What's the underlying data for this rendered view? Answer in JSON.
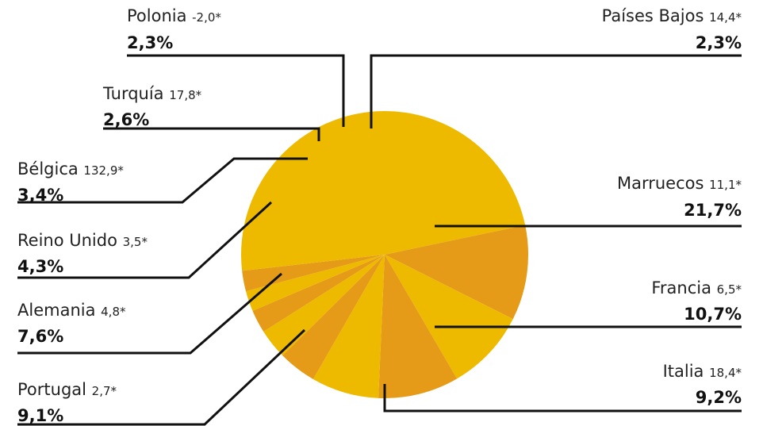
{
  "chart_data": {
    "type": "pie",
    "title": "",
    "start_angle_deg": 0,
    "colors": {
      "light": "#EDBA00",
      "dark": "#E59A18"
    },
    "slices": [
      {
        "name": "Marruecos",
        "growth": "11,1*",
        "pct_label": "21,7%",
        "value": 21.7,
        "tone": "light"
      },
      {
        "name": "Francia",
        "growth": "6,5*",
        "pct_label": "10,7%",
        "value": 10.7,
        "tone": "dark"
      },
      {
        "name": "Italia",
        "growth": "18,4*",
        "pct_label": "9,2%",
        "value": 9.2,
        "tone": "light"
      },
      {
        "name": "Portugal",
        "growth": "2,7*",
        "pct_label": "9,1%",
        "value": 9.1,
        "tone": "dark"
      },
      {
        "name": "Alemania",
        "growth": "4,8*",
        "pct_label": "7,6%",
        "value": 7.6,
        "tone": "light"
      },
      {
        "name": "Reino Unido",
        "growth": "3,5*",
        "pct_label": "4,3%",
        "value": 4.3,
        "tone": "dark"
      },
      {
        "name": "Bélgica",
        "growth": "132,9*",
        "pct_label": "3,4%",
        "value": 3.4,
        "tone": "light"
      },
      {
        "name": "Turquía",
        "growth": "17,8*",
        "pct_label": "2,6%",
        "value": 2.6,
        "tone": "dark"
      },
      {
        "name": "Polonia",
        "growth": "-2,0*",
        "pct_label": "2,3%",
        "value": 2.3,
        "tone": "light"
      },
      {
        "name": "Países Bajos",
        "growth": "14,4*",
        "pct_label": "2,3%",
        "value": 2.3,
        "tone": "dark"
      },
      {
        "name": "",
        "growth": "",
        "pct_label": "",
        "value": 26.8,
        "tone": "light"
      }
    ]
  }
}
